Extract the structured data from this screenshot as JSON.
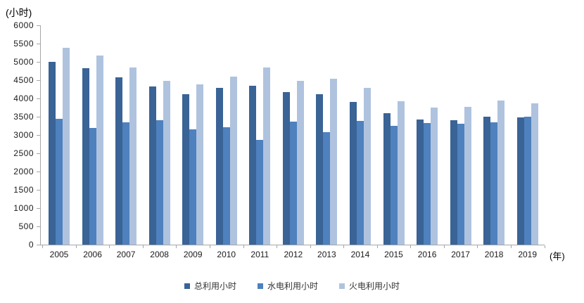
{
  "chart_data": {
    "type": "bar",
    "title": "",
    "unit_label": "(小时)",
    "x_unit_label": "(年)",
    "categories": [
      "2005",
      "2006",
      "2007",
      "2008",
      "2009",
      "2010",
      "2011",
      "2012",
      "2013",
      "2014",
      "2015",
      "2016",
      "2017",
      "2018",
      "2019"
    ],
    "series": [
      {
        "name": "总利用小时",
        "color": "#3a6396",
        "values": [
          5000,
          4820,
          4570,
          4330,
          4120,
          4280,
          4340,
          4180,
          4120,
          3900,
          3590,
          3430,
          3410,
          3500,
          3480
        ]
      },
      {
        "name": "水电利用小时",
        "color": "#4e81bd",
        "values": [
          3440,
          3190,
          3340,
          3410,
          3150,
          3210,
          2860,
          3370,
          3070,
          3390,
          3250,
          3330,
          3300,
          3340,
          3500
        ]
      },
      {
        "name": "火电利用小时",
        "color": "#afc3df",
        "values": [
          5380,
          5180,
          4840,
          4490,
          4390,
          4600,
          4840,
          4490,
          4540,
          4280,
          3920,
          3750,
          3770,
          3940,
          3860
        ]
      }
    ],
    "ylim": [
      0,
      6000
    ],
    "ytick_step": 500,
    "grid": false,
    "legend_position": "bottom",
    "axis_color": "#a6a6a6"
  }
}
